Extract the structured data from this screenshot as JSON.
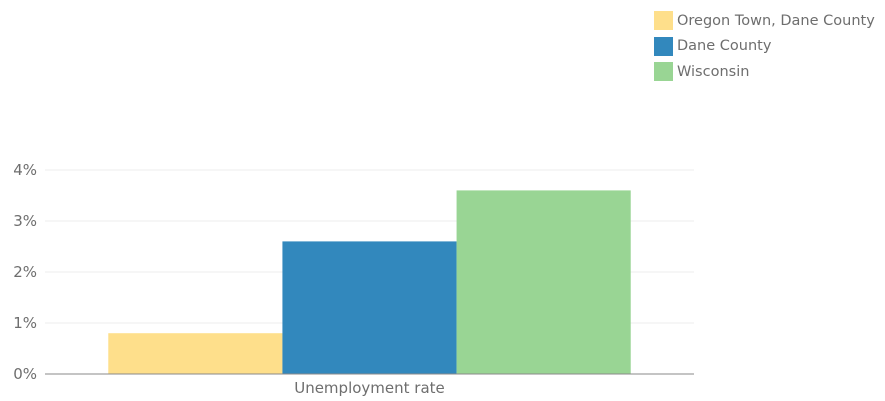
{
  "chart_data": {
    "type": "bar",
    "categories": [
      "Unemployment rate"
    ],
    "series": [
      {
        "name": "Oregon Town, Dane County",
        "values": [
          0.8
        ],
        "color": "#fedf8b"
      },
      {
        "name": "Dane County",
        "values": [
          2.6
        ],
        "color": "#3288bd"
      },
      {
        "name": "Wisconsin",
        "values": [
          3.6
        ],
        "color": "#99d594"
      }
    ],
    "y_ticks": [
      "0%",
      "1%",
      "2%",
      "3%",
      "4%"
    ],
    "ylim": [
      0,
      4
    ],
    "unit": "%",
    "grid": true,
    "legend_position": "top-right"
  }
}
